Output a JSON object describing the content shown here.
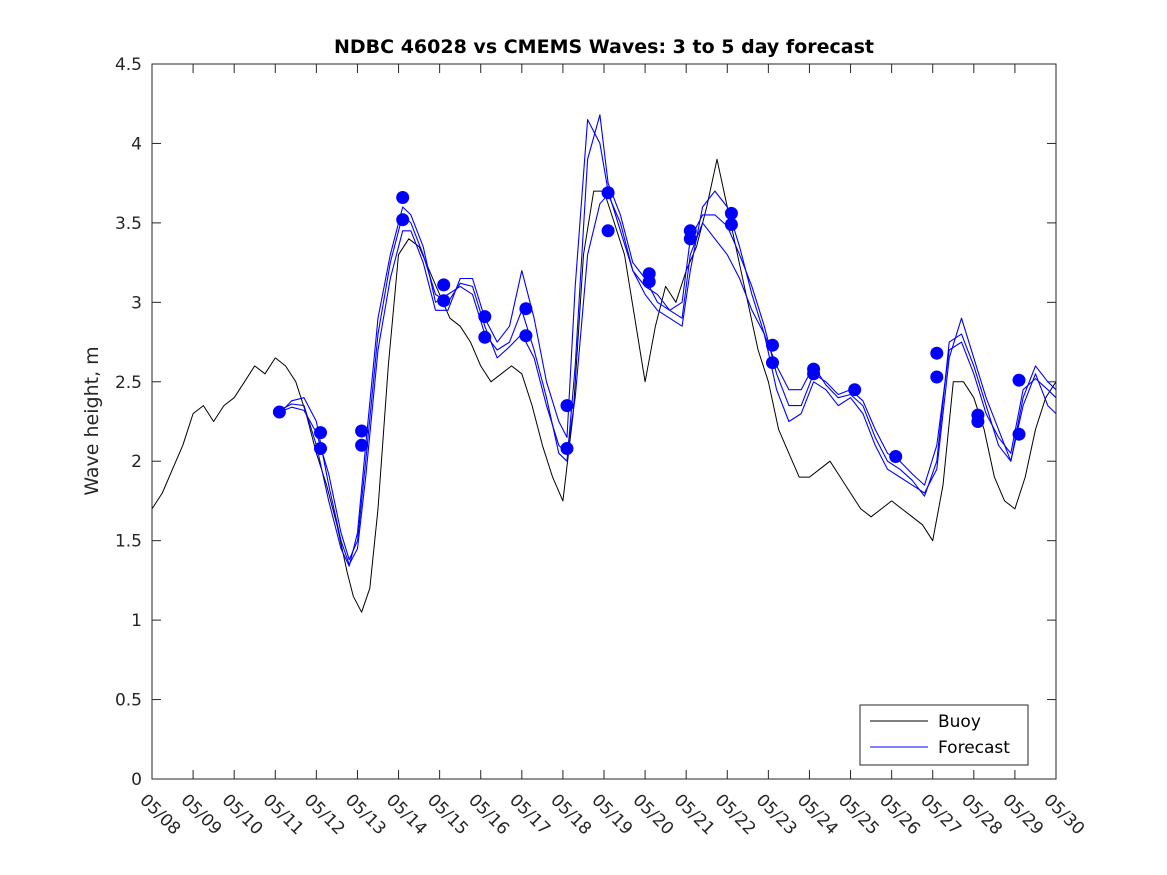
{
  "chart_data": {
    "type": "line",
    "title": "NDBC 46028 vs CMEMS Waves: 3 to 5 day forecast",
    "xlabel": "",
    "ylabel": "Wave height, m",
    "x_range": [
      8,
      30
    ],
    "ylim": [
      0,
      4.5
    ],
    "yticks": [
      0,
      0.5,
      1,
      1.5,
      2,
      2.5,
      3,
      3.5,
      4,
      4.5
    ],
    "xtick_values": [
      8,
      9,
      10,
      11,
      12,
      13,
      14,
      15,
      16,
      17,
      18,
      19,
      20,
      21,
      22,
      23,
      24,
      25,
      26,
      27,
      28,
      29,
      30
    ],
    "xtick_labels": [
      "05/08",
      "05/09",
      "05/10",
      "05/11",
      "05/12",
      "05/13",
      "05/14",
      "05/15",
      "05/16",
      "05/17",
      "05/18",
      "05/19",
      "05/20",
      "05/21",
      "05/22",
      "05/23",
      "05/24",
      "05/25",
      "05/26",
      "05/27",
      "05/28",
      "05/29",
      "05/30"
    ],
    "grid": false,
    "legend_position": "bottom-right",
    "colors": {
      "buoy": "#000000",
      "forecast": "#0000ff",
      "markers": "#0000ff"
    },
    "series": [
      {
        "name": "Buoy",
        "x": [
          8.0,
          8.25,
          8.5,
          8.75,
          9.0,
          9.25,
          9.5,
          9.75,
          10.0,
          10.25,
          10.5,
          10.75,
          11.0,
          11.25,
          11.5,
          11.75,
          12.0,
          12.25,
          12.5,
          12.75,
          12.9,
          13.1,
          13.3,
          13.5,
          13.75,
          14.0,
          14.25,
          14.5,
          14.75,
          15.0,
          15.25,
          15.5,
          15.75,
          16.0,
          16.25,
          16.5,
          16.75,
          17.0,
          17.25,
          17.5,
          17.75,
          18.0,
          18.25,
          18.5,
          18.75,
          19.0,
          19.25,
          19.5,
          19.75,
          20.0,
          20.25,
          20.5,
          20.75,
          21.0,
          21.25,
          21.5,
          21.75,
          22.0,
          22.25,
          22.5,
          22.75,
          23.0,
          23.25,
          23.5,
          23.75,
          24.0,
          24.25,
          24.5,
          24.75,
          25.0,
          25.25,
          25.5,
          25.75,
          26.0,
          26.25,
          26.5,
          26.75,
          27.0,
          27.25,
          27.5,
          27.75,
          28.0,
          28.25,
          28.5,
          28.75,
          29.0,
          29.25,
          29.5,
          29.75,
          30.0
        ],
        "y": [
          1.7,
          1.8,
          1.95,
          2.1,
          2.3,
          2.35,
          2.25,
          2.35,
          2.4,
          2.5,
          2.6,
          2.55,
          2.65,
          2.6,
          2.5,
          2.3,
          2.05,
          1.85,
          1.6,
          1.3,
          1.15,
          1.05,
          1.2,
          1.7,
          2.6,
          3.3,
          3.4,
          3.35,
          3.2,
          3.05,
          2.9,
          2.85,
          2.75,
          2.6,
          2.5,
          2.55,
          2.6,
          2.55,
          2.35,
          2.1,
          1.9,
          1.75,
          2.3,
          3.3,
          3.7,
          3.7,
          3.5,
          3.3,
          2.9,
          2.5,
          2.85,
          3.1,
          3.0,
          3.2,
          3.35,
          3.6,
          3.9,
          3.6,
          3.3,
          3.0,
          2.7,
          2.5,
          2.2,
          2.05,
          1.9,
          1.9,
          1.95,
          2.0,
          1.9,
          1.8,
          1.7,
          1.65,
          1.7,
          1.75,
          1.7,
          1.65,
          1.6,
          1.5,
          1.85,
          2.5,
          2.5,
          2.4,
          2.2,
          1.9,
          1.75,
          1.7,
          1.9,
          2.2,
          2.4,
          2.5
        ]
      },
      {
        "name": "Forecast",
        "runs": [
          {
            "x": [
              11.1,
              11.4,
              11.7,
              12.0,
              12.3,
              12.6,
              12.8,
              13.0,
              13.2,
              13.5,
              13.8,
              14.1,
              14.3,
              14.6,
              14.9,
              15.2,
              15.5,
              15.8,
              16.1,
              16.4,
              16.7,
              17.0,
              17.3,
              17.6,
              17.9,
              18.1,
              18.3,
              18.6,
              18.9,
              19.1,
              19.4,
              19.7,
              20.0,
              20.3,
              20.6,
              20.9,
              21.1,
              21.4,
              21.7,
              22.0,
              22.3,
              22.6,
              22.9,
              23.2,
              23.5,
              23.8,
              24.1,
              24.4,
              24.7,
              25.0,
              25.3,
              25.6,
              25.9,
              26.2,
              26.5,
              26.8,
              27.1,
              27.4,
              27.7,
              28.0,
              28.3,
              28.6,
              28.9,
              29.2,
              29.5,
              29.8,
              30.0
            ],
            "y": [
              2.31,
              2.34,
              2.32,
              2.18,
              1.92,
              1.55,
              1.38,
              1.5,
              2.0,
              2.8,
              3.25,
              3.55,
              3.5,
              3.3,
              3.05,
              3.0,
              3.12,
              3.1,
              2.85,
              2.65,
              2.72,
              2.8,
              2.65,
              2.35,
              2.1,
              2.05,
              2.4,
              3.3,
              3.62,
              3.68,
              3.5,
              3.2,
              3.1,
              3.05,
              2.95,
              3.0,
              3.4,
              3.55,
              3.55,
              3.48,
              3.3,
              3.1,
              2.85,
              2.55,
              2.35,
              2.35,
              2.55,
              2.5,
              2.42,
              2.45,
              2.38,
              2.2,
              2.05,
              2.0,
              1.92,
              1.85,
              2.1,
              2.7,
              2.75,
              2.55,
              2.3,
              2.15,
              2.05,
              2.45,
              2.52,
              2.45,
              2.4
            ]
          },
          {
            "x": [
              11.1,
              11.4,
              11.7,
              12.0,
              12.3,
              12.6,
              12.8,
              13.0,
              13.2,
              13.5,
              13.8,
              14.1,
              14.3,
              14.6,
              14.9,
              15.2,
              15.5,
              15.8,
              16.1,
              16.4,
              16.7,
              17.0,
              17.3,
              17.6,
              17.9,
              18.1,
              18.3,
              18.6,
              18.9,
              19.1,
              19.4,
              19.7,
              20.0,
              20.3,
              20.6,
              20.9,
              21.1,
              21.4,
              21.7,
              22.0,
              22.3,
              22.6,
              22.9,
              23.2,
              23.5,
              23.8,
              24.1,
              24.4,
              24.7,
              25.0,
              25.3,
              25.6,
              25.9,
              26.2,
              26.5,
              26.8,
              27.1,
              27.4,
              27.7,
              28.0,
              28.3,
              28.6,
              28.9,
              29.2,
              29.5,
              29.8,
              30.0
            ],
            "y": [
              2.3,
              2.38,
              2.4,
              2.25,
              1.85,
              1.5,
              1.35,
              1.45,
              1.9,
              2.7,
              3.15,
              3.45,
              3.45,
              3.25,
              2.95,
              2.95,
              3.15,
              3.15,
              2.9,
              2.75,
              2.85,
              3.2,
              2.9,
              2.5,
              2.25,
              2.15,
              3.1,
              4.15,
              4.0,
              3.7,
              3.45,
              3.2,
              3.05,
              2.95,
              2.9,
              2.85,
              3.2,
              3.6,
              3.7,
              3.6,
              3.35,
              3.05,
              2.8,
              2.45,
              2.25,
              2.3,
              2.5,
              2.45,
              2.35,
              2.4,
              2.3,
              2.1,
              1.95,
              1.9,
              1.85,
              1.8,
              1.95,
              2.65,
              2.9,
              2.65,
              2.4,
              2.2,
              2.0,
              2.4,
              2.6,
              2.5,
              2.45
            ]
          },
          {
            "x": [
              11.1,
              11.4,
              11.7,
              12.0,
              12.3,
              12.6,
              12.8,
              13.0,
              13.2,
              13.5,
              13.8,
              14.1,
              14.3,
              14.6,
              14.9,
              15.2,
              15.5,
              15.8,
              16.1,
              16.4,
              16.7,
              17.0,
              17.3,
              17.6,
              17.9,
              18.1,
              18.3,
              18.6,
              18.9,
              19.1,
              19.4,
              19.7,
              20.0,
              20.3,
              20.6,
              20.9,
              21.1,
              21.4,
              21.7,
              22.0,
              22.3,
              22.6,
              22.9,
              23.2,
              23.5,
              23.8,
              24.1,
              24.4,
              24.7,
              25.0,
              25.3,
              25.6,
              25.9,
              26.2,
              26.5,
              26.8,
              27.1,
              27.4,
              27.7,
              28.0,
              28.3,
              28.6,
              28.9,
              29.2,
              29.5,
              29.8,
              30.0
            ],
            "y": [
              2.32,
              2.36,
              2.35,
              2.1,
              1.75,
              1.45,
              1.34,
              1.55,
              2.1,
              2.9,
              3.3,
              3.6,
              3.55,
              3.35,
              3.0,
              3.05,
              3.1,
              3.05,
              2.8,
              2.7,
              2.75,
              2.95,
              2.7,
              2.4,
              2.05,
              2.0,
              2.6,
              3.9,
              4.18,
              3.75,
              3.55,
              3.25,
              3.15,
              3.0,
              2.95,
              2.9,
              3.3,
              3.5,
              3.4,
              3.3,
              3.15,
              2.95,
              2.8,
              2.6,
              2.45,
              2.45,
              2.6,
              2.48,
              2.4,
              2.42,
              2.35,
              2.15,
              2.0,
              1.95,
              1.88,
              1.78,
              2.0,
              2.75,
              2.8,
              2.6,
              2.35,
              2.1,
              2.0,
              2.35,
              2.55,
              2.35,
              2.3
            ]
          }
        ]
      }
    ],
    "markers": {
      "x": [
        11.1,
        12.1,
        12.1,
        13.1,
        13.1,
        14.1,
        14.1,
        15.1,
        15.1,
        16.1,
        16.1,
        17.1,
        17.1,
        18.1,
        18.1,
        19.1,
        19.1,
        20.1,
        20.1,
        21.1,
        21.1,
        22.1,
        22.1,
        23.1,
        23.1,
        24.1,
        24.1,
        25.1,
        26.1,
        27.1,
        27.1,
        28.1,
        28.1,
        29.1,
        29.1
      ],
      "y": [
        2.31,
        2.18,
        2.08,
        2.19,
        2.1,
        3.66,
        3.52,
        3.11,
        3.01,
        2.91,
        2.78,
        2.96,
        2.79,
        2.35,
        2.08,
        3.69,
        3.45,
        3.18,
        3.13,
        3.45,
        3.4,
        3.56,
        3.49,
        2.73,
        2.62,
        2.58,
        2.55,
        2.45,
        2.03,
        2.68,
        2.53,
        2.29,
        2.25,
        2.51,
        2.17
      ]
    }
  }
}
